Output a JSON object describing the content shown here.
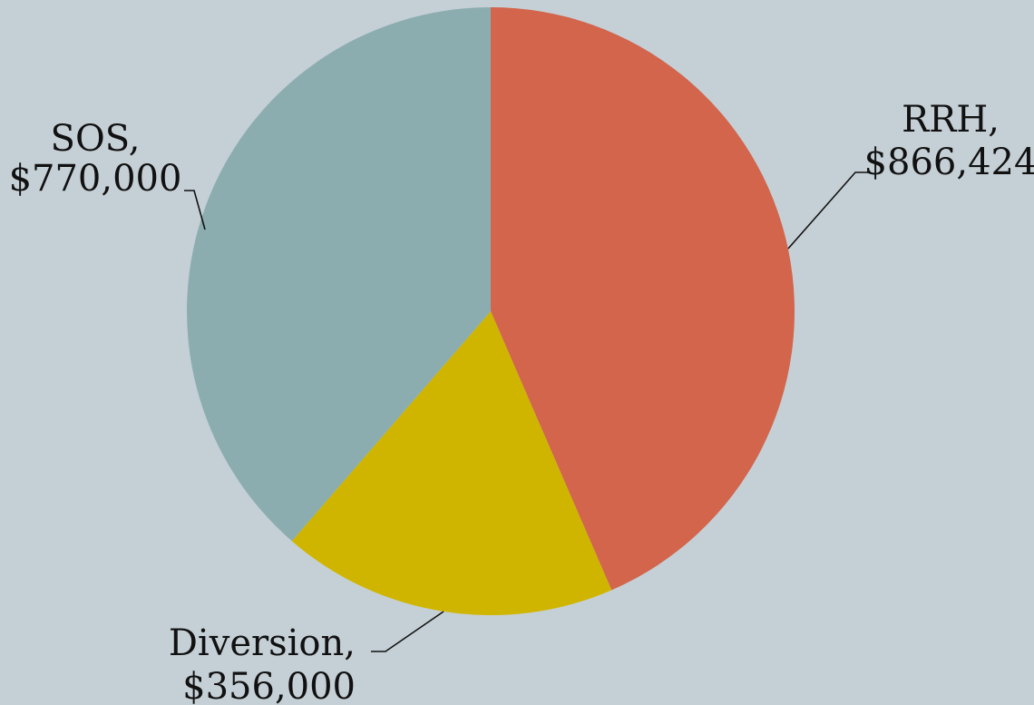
{
  "chart_data": {
    "type": "pie",
    "title": "",
    "slices": [
      {
        "name": "RRH",
        "value": 866424,
        "value_label": "$866,424",
        "color": "#d2654b"
      },
      {
        "name": "Diversion",
        "value": 356000,
        "value_label": "$356,000",
        "color": "#cfb500"
      },
      {
        "name": "SOS",
        "value": 770000,
        "value_label": "$770,000",
        "color": "#8cadaf"
      }
    ],
    "start_angle": "12 o'clock",
    "direction": "clockwise",
    "labels": "outside with leader lines",
    "legend": "none",
    "background": "#c5d0d6"
  }
}
